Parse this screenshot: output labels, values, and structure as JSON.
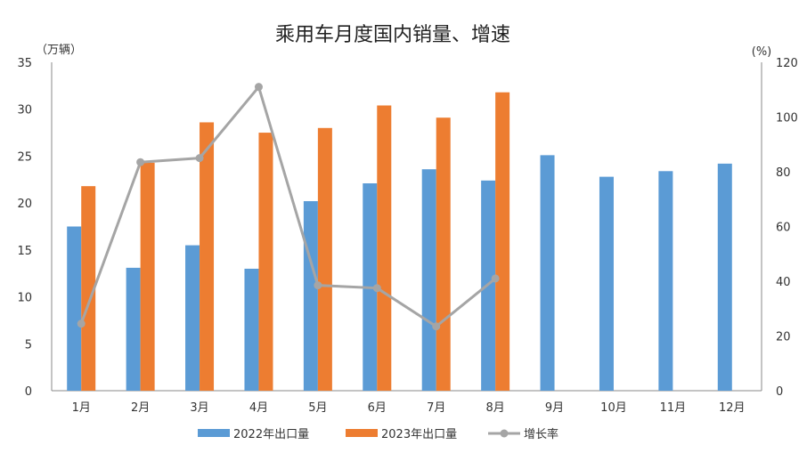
{
  "chart_data": {
    "type": "bar",
    "title": "乘用车月度国内销量、增速",
    "y_left_unit": "（万辆）",
    "y_right_unit": "(%)",
    "categories": [
      "1月",
      "2月",
      "3月",
      "4月",
      "5月",
      "6月",
      "7月",
      "8月",
      "9月",
      "10月",
      "11月",
      "12月"
    ],
    "y_left_ticks": [
      "0",
      "5",
      "10",
      "15",
      "20",
      "25",
      "30",
      "35"
    ],
    "y_right_ticks": [
      "0",
      "20",
      "40",
      "60",
      "80",
      "100",
      "120"
    ],
    "ylim_left": [
      0,
      35
    ],
    "ylim_right": [
      0,
      120
    ],
    "grid": false,
    "legend_position": "bottom",
    "series": [
      {
        "name": "2022年出口量",
        "kind": "bar",
        "axis": "left",
        "color": "#5B9BD5",
        "values": [
          17.5,
          13.1,
          15.5,
          13.0,
          20.2,
          22.1,
          23.6,
          22.4,
          25.1,
          22.8,
          23.4,
          24.2
        ]
      },
      {
        "name": "2023年出口量",
        "kind": "bar",
        "axis": "left",
        "color": "#ED7D31",
        "values": [
          21.8,
          24.3,
          28.6,
          27.5,
          28.0,
          30.4,
          29.1,
          31.8,
          null,
          null,
          null,
          null
        ]
      },
      {
        "name": "增长率",
        "kind": "line",
        "axis": "right",
        "color": "#A5A5A5",
        "values": [
          24.5,
          83.5,
          85.0,
          111.0,
          38.5,
          37.5,
          23.5,
          41.0,
          null,
          null,
          null,
          null
        ]
      }
    ]
  }
}
